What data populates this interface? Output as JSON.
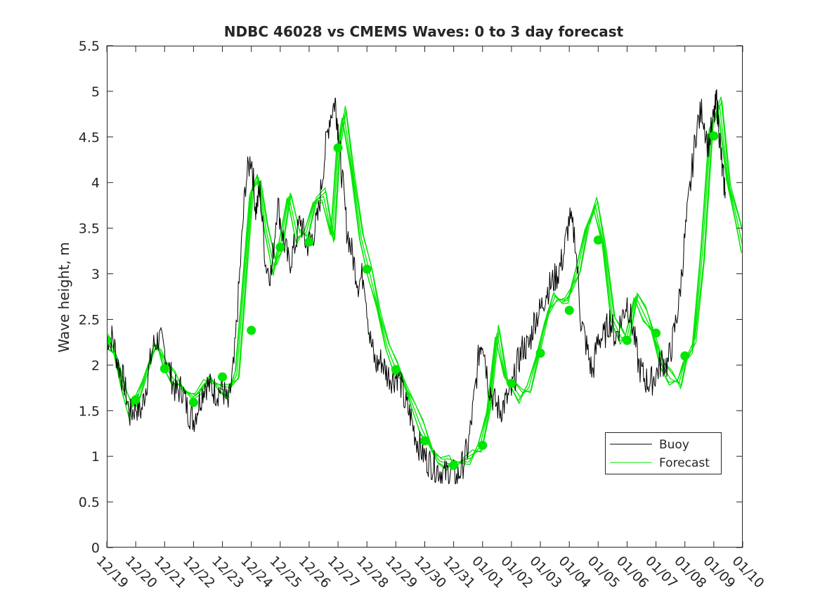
{
  "chart_data": {
    "type": "line",
    "title": "NDBC 46028 vs CMEMS Waves: 0 to 3 day forecast",
    "xlabel": "",
    "ylabel": "Wave height, m",
    "ylim": [
      0,
      5.5
    ],
    "xlim": [
      0,
      22
    ],
    "y_ticks": [
      "0",
      "0.5",
      "1",
      "1.5",
      "2",
      "2.5",
      "3",
      "3.5",
      "4",
      "4.5",
      "5",
      "5.5"
    ],
    "x_tick_labels": [
      "12/19",
      "12/20",
      "12/21",
      "12/22",
      "12/23",
      "12/24",
      "12/25",
      "12/26",
      "12/27",
      "12/28",
      "12/29",
      "12/30",
      "12/31",
      "01/01",
      "01/02",
      "01/03",
      "01/04",
      "01/05",
      "01/06",
      "01/07",
      "01/08",
      "01/09",
      "01/10"
    ],
    "legend": {
      "position": "bottom-right",
      "entries": [
        "Buoy",
        "Forecast"
      ]
    },
    "colors": {
      "buoy": "#000000",
      "forecast": "#00e600",
      "marker": "#00e600",
      "axis": "#262626"
    },
    "series": [
      {
        "name": "Buoy",
        "x": [
          0,
          0.2,
          0.4,
          0.6,
          0.8,
          1.0,
          1.2,
          1.4,
          1.6,
          1.8,
          2.0,
          2.2,
          2.4,
          2.6,
          2.8,
          3.0,
          3.2,
          3.4,
          3.6,
          3.8,
          4.0,
          4.2,
          4.4,
          4.6,
          4.8,
          5.0,
          5.15,
          5.3,
          5.5,
          5.7,
          5.9,
          6.1,
          6.3,
          6.5,
          6.7,
          6.9,
          7.1,
          7.3,
          7.5,
          7.7,
          7.9,
          8.0,
          8.1,
          8.3,
          8.5,
          8.7,
          8.9,
          9.1,
          9.3,
          9.5,
          9.7,
          9.9,
          10.1,
          10.3,
          10.5,
          10.7,
          10.9,
          11.1,
          11.3,
          11.5,
          11.7,
          11.9,
          12.1,
          12.3,
          12.5,
          12.7,
          12.9,
          13.0,
          13.2,
          13.4,
          13.6,
          13.8,
          14.0,
          14.2,
          14.4,
          14.6,
          14.8,
          15.0,
          15.2,
          15.4,
          15.6,
          15.8,
          16.0,
          16.2,
          16.4,
          16.6,
          16.8,
          17.0,
          17.2,
          17.4,
          17.6,
          17.8,
          18.0,
          18.2,
          18.4,
          18.6,
          18.8,
          19.0,
          19.2,
          19.4,
          19.6,
          19.8,
          20.0,
          20.2,
          20.4,
          20.6,
          20.8,
          21.0,
          21.1,
          21.2,
          21.3,
          21.4
        ],
        "values": [
          2.3,
          2.3,
          2.0,
          1.8,
          1.45,
          1.55,
          1.5,
          1.85,
          2.2,
          2.3,
          2.15,
          1.9,
          1.7,
          1.75,
          1.5,
          1.4,
          1.6,
          1.8,
          1.75,
          1.7,
          1.75,
          1.55,
          2.0,
          3.0,
          4.0,
          4.3,
          3.7,
          3.9,
          3.1,
          3.0,
          3.8,
          3.4,
          3.1,
          3.3,
          3.6,
          3.3,
          3.4,
          3.6,
          4.2,
          4.7,
          4.9,
          4.6,
          4.2,
          3.5,
          3.2,
          2.9,
          3.0,
          2.3,
          2.0,
          2.05,
          1.9,
          1.85,
          1.9,
          1.6,
          1.45,
          1.2,
          1.05,
          0.95,
          0.9,
          0.85,
          0.8,
          0.85,
          0.75,
          0.9,
          1.1,
          1.6,
          2.2,
          2.3,
          1.8,
          1.6,
          1.5,
          1.6,
          1.7,
          2.0,
          2.2,
          2.2,
          2.5,
          2.6,
          2.8,
          2.9,
          3.0,
          3.2,
          3.6,
          3.4,
          2.5,
          2.2,
          1.9,
          2.3,
          2.3,
          2.5,
          2.3,
          2.5,
          2.7,
          2.4,
          2.0,
          1.85,
          1.8,
          1.9,
          2.05,
          2.0,
          2.3,
          2.7,
          3.4,
          4.0,
          4.6,
          4.8,
          4.4,
          4.7,
          4.9,
          4.5,
          4.1,
          3.9
        ]
      },
      {
        "name": "Forecast",
        "x": [
          0,
          0.3,
          0.6,
          0.8,
          1.0,
          1.3,
          1.6,
          1.8,
          2.0,
          2.3,
          2.6,
          3.0,
          3.3,
          3.6,
          3.9,
          4.2,
          4.5,
          4.8,
          5.0,
          5.25,
          5.5,
          5.8,
          6.0,
          6.3,
          6.6,
          6.9,
          7.2,
          7.5,
          7.8,
          8.0,
          8.2,
          8.5,
          8.8,
          9.1,
          9.4,
          9.7,
          10.0,
          10.3,
          10.6,
          10.9,
          11.2,
          11.5,
          11.8,
          12.0,
          12.3,
          12.6,
          12.9,
          13.2,
          13.5,
          13.8,
          14.0,
          14.3,
          14.6,
          14.9,
          15.2,
          15.5,
          15.8,
          16.0,
          16.3,
          16.6,
          16.9,
          17.2,
          17.5,
          17.8,
          18.0,
          18.3,
          18.6,
          18.9,
          19.2,
          19.5,
          19.8,
          20.0,
          20.3,
          20.6,
          20.9,
          21.2,
          21.5,
          21.8,
          22.0
        ],
        "values": [
          2.25,
          2.1,
          1.7,
          1.5,
          1.6,
          1.85,
          2.15,
          2.2,
          2.0,
          1.85,
          1.75,
          1.65,
          1.75,
          1.85,
          1.75,
          1.7,
          1.9,
          3.1,
          3.9,
          4.05,
          3.5,
          3.05,
          3.3,
          3.85,
          3.4,
          3.45,
          3.8,
          3.85,
          3.4,
          4.35,
          4.75,
          4.1,
          3.4,
          3.0,
          2.6,
          2.2,
          1.95,
          1.8,
          1.55,
          1.3,
          1.1,
          0.95,
          0.92,
          0.92,
          0.95,
          0.98,
          1.1,
          1.5,
          2.35,
          1.85,
          1.8,
          1.65,
          1.75,
          2.1,
          2.5,
          2.75,
          2.7,
          2.75,
          3.05,
          3.5,
          3.75,
          3.3,
          2.5,
          2.3,
          2.3,
          2.75,
          2.55,
          2.35,
          2.0,
          1.85,
          1.8,
          2.05,
          2.2,
          3.2,
          4.6,
          4.85,
          4.0,
          3.6,
          3.3
        ]
      },
      {
        "name": "Forecast markers",
        "x": [
          0,
          1,
          2,
          3,
          4,
          5,
          6,
          7,
          8,
          9,
          10,
          11,
          12,
          13,
          14,
          15,
          16,
          17,
          18,
          19,
          20,
          21
        ],
        "values": [
          2.27,
          1.62,
          1.96,
          1.59,
          1.87,
          2.38,
          3.29,
          3.35,
          4.38,
          3.05,
          1.95,
          1.17,
          0.9,
          1.12,
          1.8,
          2.13,
          2.6,
          3.37,
          2.27,
          2.35,
          2.1,
          4.51
        ]
      }
    ]
  }
}
